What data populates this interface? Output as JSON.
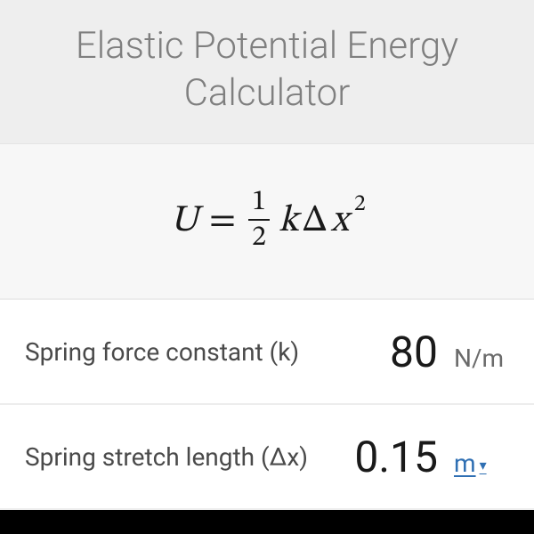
{
  "header": {
    "title": "Elastic Potential Energy Calculator"
  },
  "formula": {
    "lhs": "U",
    "frac_num": "1",
    "frac_den": "2",
    "k": "k",
    "delta": "Δ",
    "x": "x",
    "exp": "2"
  },
  "rows": [
    {
      "label": "Spring force constant (k)",
      "value": "80",
      "unit": "N/m",
      "unit_is_link": false
    },
    {
      "label": "Spring stretch length (Δx)",
      "value": "0.15",
      "unit": "m",
      "unit_is_link": true
    }
  ],
  "colors": {
    "header_bg": "#eeeeee",
    "formula_bg": "#f7f7f7",
    "title_color": "#7f7f7f",
    "text_color": "#1a1a1a",
    "label_color": "#4a4a4a",
    "unit_color": "#6b6b6b",
    "link_color": "#2f6fb3",
    "divider": "#ededed",
    "footer_bg": "#000000"
  }
}
